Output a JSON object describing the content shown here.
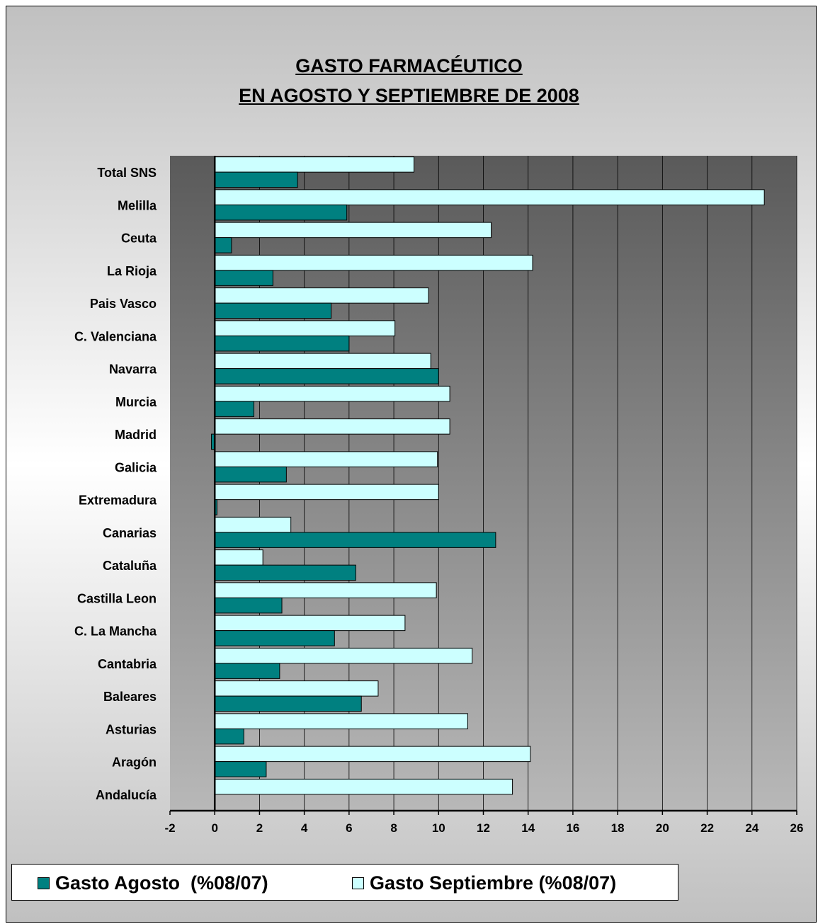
{
  "chart_data": {
    "type": "bar",
    "orientation": "horizontal",
    "title": "GASTO FARMACÉUTICO",
    "subtitle": "EN AGOSTO Y SEPTIEMBRE DE 2008",
    "categories": [
      "Total SNS",
      "Melilla",
      "Ceuta",
      "La Rioja",
      "Pais Vasco",
      "C. Valenciana",
      "Navarra",
      "Murcia",
      "Madrid",
      "Galicia",
      "Extremadura",
      "Canarias",
      "Cataluña",
      "Castilla Leon",
      "C. La Mancha",
      "Cantabria",
      "Baleares",
      "Asturias",
      "Aragón",
      "Andalucía"
    ],
    "series": [
      {
        "name": "Gasto Agosto  (%08/07)",
        "color": "#008080",
        "values": [
          3.7,
          5.9,
          0.75,
          2.6,
          5.2,
          6.0,
          10.0,
          1.75,
          -0.15,
          3.2,
          0.1,
          12.55,
          6.3,
          3.0,
          5.35,
          2.9,
          6.55,
          1.3,
          2.3,
          0
        ]
      },
      {
        "name": "Gasto Septiembre (%08/07)",
        "color": "#ccffff",
        "values": [
          8.9,
          24.55,
          12.35,
          14.2,
          9.55,
          8.05,
          9.65,
          10.5,
          10.5,
          9.95,
          10.0,
          3.4,
          2.15,
          9.9,
          8.5,
          11.5,
          7.3,
          11.3,
          14.1,
          13.3
        ]
      }
    ],
    "xlim": [
      -2,
      26
    ],
    "xticks": [
      -2,
      0,
      2,
      4,
      6,
      8,
      10,
      12,
      14,
      16,
      18,
      20,
      22,
      24,
      26
    ],
    "grid": true,
    "legend_position": "bottom"
  }
}
